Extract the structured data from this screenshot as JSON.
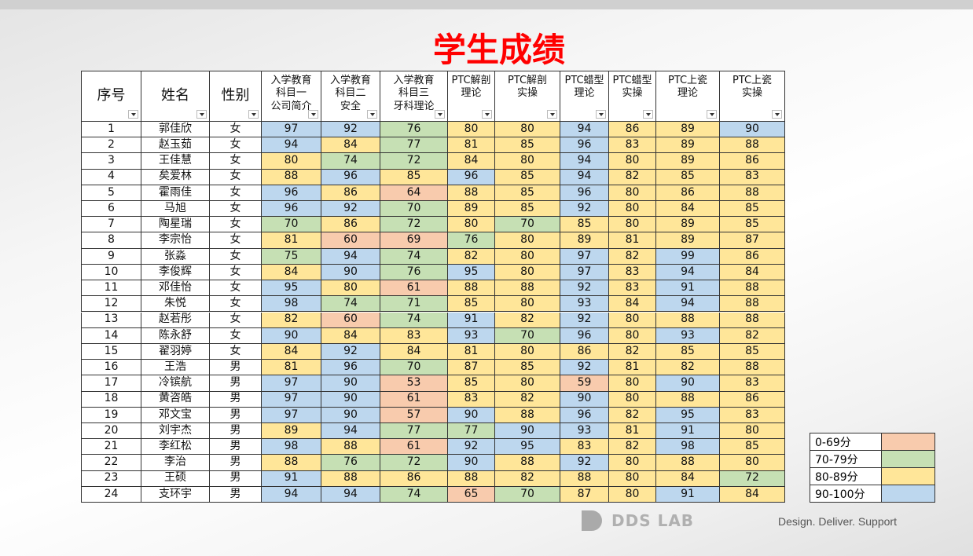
{
  "title": "学生成绩",
  "table": {
    "header": [
      "序号",
      "姓名",
      "性别",
      "入学教育\n科目一\n公司简介",
      "入学教育\n科目二\n安全",
      "入学教育\n科目三\n牙科理论",
      "PTC解剖\n理论",
      "PTC解剖\n实操",
      "PTC蜡型\n理论",
      "PTC蜡型\n实操",
      "PTC上瓷\n理论",
      "PTC上瓷\n实操"
    ],
    "rows": [
      [
        1,
        "郭佳欣",
        "女",
        97,
        92,
        76,
        80,
        80,
        94,
        86,
        89,
        90
      ],
      [
        2,
        "赵玉茹",
        "女",
        94,
        84,
        77,
        81,
        85,
        96,
        83,
        89,
        88
      ],
      [
        3,
        "王佳慧",
        "女",
        80,
        74,
        72,
        84,
        80,
        94,
        80,
        89,
        86
      ],
      [
        4,
        "矣爱林",
        "女",
        88,
        96,
        85,
        96,
        85,
        94,
        82,
        85,
        83
      ],
      [
        5,
        "霍雨佳",
        "女",
        96,
        86,
        64,
        88,
        85,
        96,
        80,
        86,
        88
      ],
      [
        6,
        "马旭",
        "女",
        96,
        92,
        70,
        89,
        85,
        92,
        80,
        84,
        85
      ],
      [
        7,
        "陶星瑞",
        "女",
        70,
        86,
        72,
        80,
        70,
        85,
        80,
        89,
        85
      ],
      [
        8,
        "李宗怡",
        "女",
        81,
        60,
        69,
        76,
        80,
        89,
        81,
        89,
        87
      ],
      [
        9,
        "张淼",
        "女",
        75,
        94,
        74,
        82,
        80,
        97,
        82,
        99,
        86
      ],
      [
        10,
        "李俊辉",
        "女",
        84,
        90,
        76,
        95,
        80,
        97,
        83,
        94,
        84
      ],
      [
        11,
        "邓佳怡",
        "女",
        95,
        80,
        61,
        88,
        88,
        92,
        83,
        91,
        88
      ],
      [
        12,
        "朱悦",
        "女",
        98,
        74,
        71,
        85,
        80,
        93,
        84,
        94,
        88
      ],
      [
        13,
        "赵若彤",
        "女",
        82,
        60,
        74,
        91,
        82,
        92,
        80,
        88,
        88
      ],
      [
        14,
        "陈永舒",
        "女",
        90,
        84,
        83,
        93,
        70,
        96,
        80,
        93,
        82
      ],
      [
        15,
        "翟羽婷",
        "女",
        84,
        92,
        84,
        81,
        80,
        86,
        82,
        85,
        85
      ],
      [
        16,
        "王浩",
        "男",
        81,
        96,
        70,
        87,
        85,
        92,
        81,
        82,
        88
      ],
      [
        17,
        "冷镔航",
        "男",
        97,
        90,
        53,
        85,
        80,
        59,
        80,
        90,
        83
      ],
      [
        18,
        "黄咨皓",
        "男",
        97,
        90,
        61,
        83,
        82,
        90,
        80,
        88,
        86
      ],
      [
        19,
        "邓文宝",
        "男",
        97,
        90,
        57,
        90,
        88,
        96,
        82,
        95,
        83
      ],
      [
        20,
        "刘宇杰",
        "男",
        89,
        94,
        77,
        77,
        90,
        93,
        81,
        91,
        80
      ],
      [
        21,
        "李红松",
        "男",
        98,
        88,
        61,
        92,
        95,
        83,
        82,
        98,
        85
      ],
      [
        22,
        "李治",
        "男",
        88,
        76,
        72,
        90,
        88,
        92,
        80,
        88,
        80
      ],
      [
        23,
        "王硕",
        "男",
        91,
        88,
        86,
        88,
        82,
        88,
        80,
        84,
        72
      ],
      [
        24,
        "支环宇",
        "男",
        94,
        94,
        74,
        65,
        70,
        87,
        80,
        91,
        84
      ]
    ]
  },
  "legend": [
    {
      "label": "0-69分",
      "color": "#f8cbad"
    },
    {
      "label": "70-79分",
      "color": "#c6e0b4"
    },
    {
      "label": "80-89分",
      "color": "#ffe699"
    },
    {
      "label": "90-100分",
      "color": "#bdd7ee"
    }
  ],
  "footer": {
    "logo": "DDS LAB",
    "tagline": "Design. Deliver. Support"
  }
}
